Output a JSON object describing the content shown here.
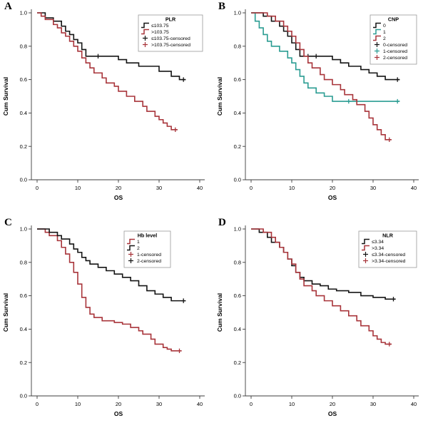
{
  "figure": {
    "bg": "#ffffff",
    "axis_color": "#3c3c3c",
    "xlabel": "OS",
    "ylabel": "Cum Survival",
    "yticks": [
      "0.0",
      "0.2",
      "0.4",
      "0.6",
      "0.8",
      "1.0"
    ],
    "xticks": [
      "0",
      "10",
      "20",
      "30",
      "40"
    ],
    "colors": {
      "black": "#141414",
      "red": "#a8343a",
      "teal": "#2a9c92"
    }
  },
  "chart_data": [
    {
      "panel": "A",
      "type": "line",
      "subtype": "kaplan-meier-step",
      "legend_title": "PLR",
      "legend_pos": "top-right",
      "legend_dx": 0,
      "xlabel": "OS",
      "ylabel": "Cum Survival",
      "xlim": [
        0,
        40
      ],
      "ylim": [
        0.0,
        1.0
      ],
      "grid": false,
      "series": [
        {
          "name": "≤103.75",
          "color": "#141414",
          "points": [
            [
              0,
              1.0
            ],
            [
              2,
              0.97
            ],
            [
              4,
              0.95
            ],
            [
              6,
              0.92
            ],
            [
              7,
              0.89
            ],
            [
              8,
              0.87
            ],
            [
              9,
              0.84
            ],
            [
              10,
              0.82
            ],
            [
              11,
              0.78
            ],
            [
              12,
              0.74
            ],
            [
              20,
              0.72
            ],
            [
              22,
              0.7
            ],
            [
              25,
              0.68
            ],
            [
              30,
              0.65
            ],
            [
              33,
              0.62
            ],
            [
              35,
              0.6
            ]
          ],
          "censors": [
            [
              15,
              0.74
            ],
            [
              36,
              0.6
            ]
          ]
        },
        {
          "name": ">103.75",
          "color": "#a8343a",
          "points": [
            [
              0,
              1.0
            ],
            [
              1,
              0.98
            ],
            [
              2,
              0.96
            ],
            [
              4,
              0.93
            ],
            [
              5,
              0.91
            ],
            [
              6,
              0.88
            ],
            [
              7,
              0.86
            ],
            [
              8,
              0.83
            ],
            [
              9,
              0.8
            ],
            [
              10,
              0.77
            ],
            [
              11,
              0.73
            ],
            [
              12,
              0.7
            ],
            [
              13,
              0.67
            ],
            [
              14,
              0.64
            ],
            [
              16,
              0.61
            ],
            [
              17,
              0.58
            ],
            [
              19,
              0.56
            ],
            [
              20,
              0.53
            ],
            [
              22,
              0.5
            ],
            [
              24,
              0.47
            ],
            [
              26,
              0.44
            ],
            [
              27,
              0.41
            ],
            [
              29,
              0.38
            ],
            [
              30,
              0.36
            ],
            [
              31,
              0.34
            ],
            [
              32,
              0.32
            ],
            [
              33,
              0.3
            ]
          ],
          "censors": [
            [
              34,
              0.3
            ]
          ]
        }
      ],
      "legend_entries": [
        {
          "label": "≤103.75",
          "color": "#141414",
          "marker": "line"
        },
        {
          "label": ">103.75",
          "color": "#a8343a",
          "marker": "line"
        },
        {
          "label": "≤103.75-censored",
          "color": "#141414",
          "marker": "plus"
        },
        {
          "label": ">103.75-censored",
          "color": "#a8343a",
          "marker": "plus"
        }
      ]
    },
    {
      "panel": "B",
      "type": "line",
      "subtype": "kaplan-meier-step",
      "legend_title": "CNP",
      "legend_pos": "top-right",
      "legend_dx": 0,
      "xlabel": "OS",
      "ylabel": "Cum Survival",
      "xlim": [
        0,
        40
      ],
      "ylim": [
        0.0,
        1.0
      ],
      "grid": false,
      "series": [
        {
          "name": "0",
          "color": "#141414",
          "points": [
            [
              0,
              1.0
            ],
            [
              3,
              0.98
            ],
            [
              5,
              0.95
            ],
            [
              7,
              0.92
            ],
            [
              8,
              0.89
            ],
            [
              9,
              0.86
            ],
            [
              10,
              0.82
            ],
            [
              11,
              0.78
            ],
            [
              12,
              0.74
            ],
            [
              20,
              0.72
            ],
            [
              22,
              0.7
            ],
            [
              24,
              0.68
            ],
            [
              27,
              0.66
            ],
            [
              29,
              0.64
            ],
            [
              31,
              0.62
            ],
            [
              33,
              0.6
            ]
          ],
          "censors": [
            [
              14,
              0.74
            ],
            [
              16,
              0.74
            ],
            [
              36,
              0.6
            ]
          ]
        },
        {
          "name": "1",
          "color": "#2a9c92",
          "points": [
            [
              0,
              1.0
            ],
            [
              1,
              0.95
            ],
            [
              2,
              0.91
            ],
            [
              3,
              0.87
            ],
            [
              4,
              0.83
            ],
            [
              5,
              0.8
            ],
            [
              7,
              0.77
            ],
            [
              9,
              0.73
            ],
            [
              10,
              0.7
            ],
            [
              11,
              0.66
            ],
            [
              12,
              0.62
            ],
            [
              13,
              0.58
            ],
            [
              14,
              0.55
            ],
            [
              16,
              0.52
            ],
            [
              18,
              0.5
            ],
            [
              20,
              0.47
            ]
          ],
          "censors": [
            [
              24,
              0.47
            ],
            [
              36,
              0.47
            ]
          ]
        },
        {
          "name": "2",
          "color": "#a8343a",
          "points": [
            [
              0,
              1.0
            ],
            [
              4,
              0.98
            ],
            [
              6,
              0.95
            ],
            [
              8,
              0.92
            ],
            [
              9,
              0.89
            ],
            [
              10,
              0.86
            ],
            [
              11,
              0.82
            ],
            [
              12,
              0.78
            ],
            [
              13,
              0.74
            ],
            [
              14,
              0.7
            ],
            [
              15,
              0.67
            ],
            [
              17,
              0.63
            ],
            [
              18,
              0.6
            ],
            [
              20,
              0.57
            ],
            [
              22,
              0.54
            ],
            [
              23,
              0.51
            ],
            [
              25,
              0.48
            ],
            [
              26,
              0.45
            ],
            [
              28,
              0.41
            ],
            [
              29,
              0.37
            ],
            [
              30,
              0.33
            ],
            [
              31,
              0.3
            ],
            [
              32,
              0.27
            ],
            [
              33,
              0.24
            ]
          ],
          "censors": [
            [
              34,
              0.24
            ]
          ]
        }
      ],
      "legend_entries": [
        {
          "label": "0",
          "color": "#141414",
          "marker": "line"
        },
        {
          "label": "1",
          "color": "#2a9c92",
          "marker": "line"
        },
        {
          "label": "2",
          "color": "#a8343a",
          "marker": "line"
        },
        {
          "label": "0-censored",
          "color": "#141414",
          "marker": "plus"
        },
        {
          "label": "1-censored",
          "color": "#2a9c92",
          "marker": "plus"
        },
        {
          "label": "2-censored",
          "color": "#a8343a",
          "marker": "plus"
        }
      ]
    },
    {
      "panel": "C",
      "type": "line",
      "subtype": "kaplan-meier-step",
      "legend_title": "Hb level",
      "legend_pos": "top-center-right",
      "legend_dx": -45,
      "xlabel": "OS",
      "ylabel": "Cum Survival",
      "xlim": [
        0,
        40
      ],
      "ylim": [
        0.0,
        1.0
      ],
      "grid": false,
      "series": [
        {
          "name": "1",
          "color": "#a8343a",
          "points": [
            [
              0,
              1.0
            ],
            [
              2,
              0.98
            ],
            [
              3,
              0.96
            ],
            [
              5,
              0.93
            ],
            [
              6,
              0.89
            ],
            [
              7,
              0.85
            ],
            [
              8,
              0.8
            ],
            [
              9,
              0.74
            ],
            [
              10,
              0.67
            ],
            [
              11,
              0.59
            ],
            [
              12,
              0.53
            ],
            [
              13,
              0.49
            ],
            [
              14,
              0.47
            ],
            [
              16,
              0.45
            ],
            [
              19,
              0.44
            ],
            [
              21,
              0.43
            ],
            [
              23,
              0.41
            ],
            [
              25,
              0.39
            ],
            [
              26,
              0.37
            ],
            [
              28,
              0.34
            ],
            [
              29,
              0.31
            ],
            [
              31,
              0.29
            ],
            [
              32,
              0.28
            ],
            [
              33,
              0.27
            ]
          ],
          "censors": [
            [
              35,
              0.27
            ]
          ]
        },
        {
          "name": "2",
          "color": "#141414",
          "points": [
            [
              0,
              1.0
            ],
            [
              3,
              0.98
            ],
            [
              5,
              0.96
            ],
            [
              6,
              0.94
            ],
            [
              8,
              0.91
            ],
            [
              9,
              0.88
            ],
            [
              10,
              0.86
            ],
            [
              11,
              0.83
            ],
            [
              12,
              0.81
            ],
            [
              13,
              0.79
            ],
            [
              15,
              0.77
            ],
            [
              17,
              0.75
            ],
            [
              19,
              0.73
            ],
            [
              21,
              0.71
            ],
            [
              23,
              0.69
            ],
            [
              25,
              0.66
            ],
            [
              27,
              0.63
            ],
            [
              29,
              0.61
            ],
            [
              31,
              0.59
            ],
            [
              33,
              0.57
            ]
          ],
          "censors": [
            [
              36,
              0.57
            ]
          ]
        }
      ],
      "legend_entries": [
        {
          "label": "1",
          "color": "#a8343a",
          "marker": "line"
        },
        {
          "label": "2",
          "color": "#141414",
          "marker": "line"
        },
        {
          "label": "1-censored",
          "color": "#a8343a",
          "marker": "plus"
        },
        {
          "label": "2-censored",
          "color": "#141414",
          "marker": "plus"
        }
      ]
    },
    {
      "panel": "D",
      "type": "line",
      "subtype": "kaplan-meier-step",
      "legend_title": "NLR",
      "legend_pos": "top-right",
      "legend_dx": 0,
      "xlabel": "OS",
      "ylabel": "Cum Survival",
      "xlim": [
        0,
        40
      ],
      "ylim": [
        0.0,
        1.0
      ],
      "grid": false,
      "series": [
        {
          "name": "≤3.34",
          "color": "#141414",
          "points": [
            [
              0,
              1.0
            ],
            [
              2,
              0.98
            ],
            [
              4,
              0.95
            ],
            [
              5,
              0.92
            ],
            [
              7,
              0.89
            ],
            [
              8,
              0.86
            ],
            [
              9,
              0.82
            ],
            [
              10,
              0.78
            ],
            [
              11,
              0.74
            ],
            [
              12,
              0.71
            ],
            [
              13,
              0.69
            ],
            [
              15,
              0.67
            ],
            [
              17,
              0.66
            ],
            [
              19,
              0.64
            ],
            [
              21,
              0.63
            ],
            [
              24,
              0.62
            ],
            [
              27,
              0.6
            ],
            [
              30,
              0.59
            ],
            [
              33,
              0.58
            ]
          ],
          "censors": [
            [
              35,
              0.58
            ]
          ]
        },
        {
          "name": ">3.34",
          "color": "#a8343a",
          "points": [
            [
              0,
              1.0
            ],
            [
              3,
              0.98
            ],
            [
              5,
              0.95
            ],
            [
              6,
              0.92
            ],
            [
              7,
              0.89
            ],
            [
              8,
              0.86
            ],
            [
              9,
              0.82
            ],
            [
              10,
              0.79
            ],
            [
              11,
              0.74
            ],
            [
              12,
              0.7
            ],
            [
              13,
              0.66
            ],
            [
              15,
              0.63
            ],
            [
              16,
              0.6
            ],
            [
              18,
              0.57
            ],
            [
              20,
              0.54
            ],
            [
              22,
              0.51
            ],
            [
              24,
              0.48
            ],
            [
              26,
              0.45
            ],
            [
              27,
              0.42
            ],
            [
              29,
              0.39
            ],
            [
              30,
              0.36
            ],
            [
              31,
              0.34
            ],
            [
              32,
              0.32
            ],
            [
              33,
              0.31
            ]
          ],
          "censors": [
            [
              34,
              0.31
            ]
          ]
        }
      ],
      "legend_entries": [
        {
          "label": "≤3.34",
          "color": "#141414",
          "marker": "line"
        },
        {
          "label": ">3.34",
          "color": "#a8343a",
          "marker": "line"
        },
        {
          "label": "≤3.34-censored",
          "color": "#141414",
          "marker": "plus"
        },
        {
          "label": ">3.34-censored",
          "color": "#a8343a",
          "marker": "plus"
        }
      ]
    }
  ]
}
